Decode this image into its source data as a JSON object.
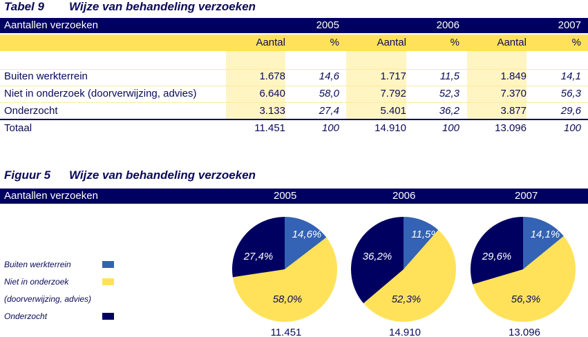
{
  "table": {
    "caption_num": "Tabel 9",
    "caption": "Wijze van behandeling verzoeken",
    "header_label": "Aantallen verzoeken",
    "years": [
      "2005",
      "2006",
      "2007"
    ],
    "subheaders": [
      "Aantal",
      "%",
      "Aantal",
      "%",
      "Aantal",
      "%"
    ],
    "rows": [
      {
        "label": "Buiten werkterrein",
        "values": [
          "1.678",
          "14,6",
          "1.717",
          "11,5",
          "1.849",
          "14,1"
        ]
      },
      {
        "label": "Niet in onderzoek (doorverwijzing, advies)",
        "values": [
          "6.640",
          "58,0",
          "7.792",
          "52,3",
          "7.370",
          "56,3"
        ]
      },
      {
        "label": "Onderzocht",
        "values": [
          "3.133",
          "27,4",
          "5.401",
          "36,2",
          "3.877",
          "29,6"
        ]
      }
    ],
    "total": {
      "label": "Totaal",
      "values": [
        "11.451",
        "100",
        "14.910",
        "100",
        "13.096",
        "100"
      ]
    }
  },
  "chart_data": {
    "type": "pie",
    "caption_num": "Figuur 5",
    "title": "Wijze van behandeling verzoeken",
    "header_label": "Aantallen verzoeken",
    "legend": [
      {
        "label": "Buiten werkterrein",
        "color": "#3462b4"
      },
      {
        "label": "Niet in onderzoek",
        "label2": "(doorverwijzing, advies)",
        "color": "#ffe25a"
      },
      {
        "label": "Onderzocht",
        "color": "#000060"
      }
    ],
    "pies": [
      {
        "year": "2005",
        "total": "11.451",
        "values": [
          14.6,
          58.0,
          27.4
        ],
        "labels": [
          "14,6%",
          "58,0%",
          "27,4%"
        ]
      },
      {
        "year": "2006",
        "total": "14.910",
        "values": [
          11.5,
          52.3,
          36.2
        ],
        "labels": [
          "11,5%",
          "52,3%",
          "36,2%"
        ]
      },
      {
        "year": "2007",
        "total": "13.096",
        "values": [
          14.1,
          56.3,
          29.6
        ],
        "labels": [
          "14,1%",
          "56,3%",
          "29,6%"
        ]
      }
    ]
  }
}
